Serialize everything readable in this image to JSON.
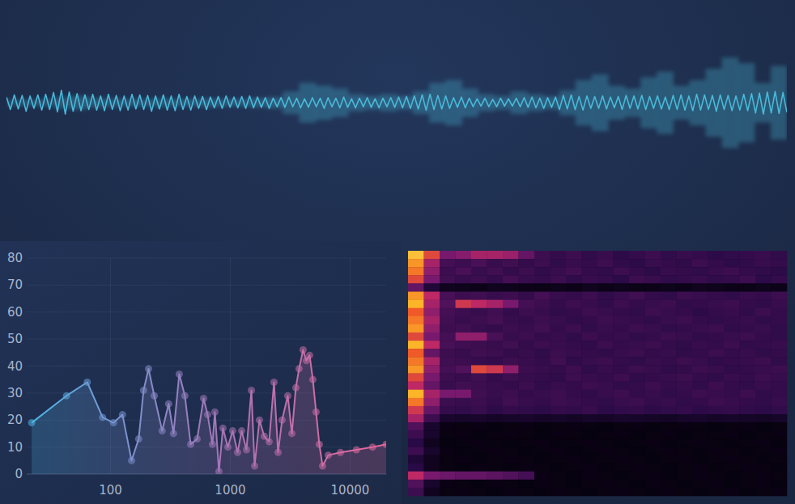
{
  "chart_data": [
    {
      "type": "line",
      "tick_labels": false,
      "ylim": [
        -1,
        1
      ],
      "series": [
        {
          "color": "#4ab8d8",
          "values": [
            0.1,
            -0.12,
            0.14,
            -0.11,
            0.13,
            -0.15,
            0.12,
            -0.1,
            0.14,
            -0.13,
            0.15,
            -0.12,
            0.18,
            -0.16,
            0.22,
            -0.2,
            0.19,
            -0.15,
            0.16,
            -0.14,
            0.14,
            -0.12,
            0.15,
            -0.13,
            0.12,
            -0.14,
            0.15,
            -0.12,
            0.13,
            -0.14,
            0.12,
            -0.13,
            0.15,
            -0.11,
            0.14,
            -0.12,
            0.13,
            -0.15,
            0.12,
            -0.11,
            0.14,
            -0.13,
            0.12,
            -0.14,
            0.15,
            -0.12,
            0.11,
            -0.13,
            0.12,
            -0.1,
            0.11,
            -0.12,
            0.1,
            -0.09,
            0.11,
            -0.1,
            0.12,
            -0.08,
            0.1,
            -0.09,
            0.11,
            -0.1,
            0.12,
            -0.09,
            0.1,
            -0.08,
            0.09,
            -0.1,
            0.08,
            -0.07,
            0.09,
            -0.08,
            0.1,
            -0.07,
            0.08,
            -0.09,
            0.07,
            -0.08,
            0.09,
            -0.07,
            0.08,
            -0.1,
            0.09,
            -0.07,
            0.08,
            -0.09,
            0.1,
            -0.08,
            0.07,
            -0.09,
            0.08,
            -0.07,
            0.09,
            -0.08,
            0.07,
            -0.09,
            0.08,
            -0.07,
            0.09,
            -0.08,
            0.1,
            -0.09,
            0.11,
            -0.1,
            0.12,
            -0.11,
            0.14,
            -0.13,
            0.15,
            -0.12,
            0.13,
            -0.11,
            0.12,
            -0.1,
            0.09,
            -0.08,
            0.1,
            -0.09,
            0.08,
            -0.07,
            0.07,
            -0.06,
            0.08,
            -0.07,
            0.06,
            -0.07,
            0.08,
            -0.06,
            0.07,
            -0.06,
            0.08,
            -0.07,
            0.09,
            -0.08,
            0.1,
            -0.09,
            0.08,
            -0.1,
            0.09,
            -0.08,
            0.1,
            -0.12,
            0.13,
            -0.11,
            0.14,
            -0.12,
            0.11,
            -0.13,
            0.12,
            -0.1,
            0.11,
            -0.1,
            0.12,
            -0.11,
            0.1,
            -0.09,
            0.11,
            -0.12,
            0.13,
            -0.1,
            0.12,
            -0.11,
            0.13,
            -0.12,
            0.11,
            -0.1,
            0.12,
            -0.11,
            0.1,
            -0.12,
            0.13,
            -0.12,
            0.14,
            -0.13,
            0.12,
            -0.14,
            0.15,
            -0.13,
            0.14,
            -0.12,
            0.13,
            -0.15,
            0.14,
            -0.12,
            0.13,
            -0.14,
            0.12,
            -0.13,
            0.15,
            -0.14,
            0.16,
            -0.18,
            0.17,
            -0.2,
            0.19,
            -0.18,
            0.2,
            -0.19,
            0.18,
            -0.17
          ]
        },
        {
          "type": "bar",
          "color": "#4ab8d8",
          "values": [
            0.05,
            0.05,
            0.06,
            0.1,
            0.12,
            0.08,
            0.07,
            0.06,
            0.06,
            0.07,
            0.06,
            0.06,
            0.07,
            0.06,
            0.06,
            0.08,
            0.1,
            0.2,
            0.35,
            0.3,
            0.25,
            0.15,
            0.12,
            0.15,
            0.12,
            0.2,
            0.35,
            0.4,
            0.25,
            0.15,
            0.12,
            0.2,
            0.15,
            0.12,
            0.22,
            0.4,
            0.5,
            0.3,
            0.25,
            0.45,
            0.55,
            0.3,
            0.4,
            0.6,
            0.8,
            0.7,
            0.35,
            0.65
          ]
        }
      ]
    },
    {
      "type": "line",
      "log": "x",
      "grid": true,
      "xlim": [
        20,
        20000
      ],
      "ylim": [
        0,
        80
      ],
      "xticks": [
        100,
        1000,
        10000
      ],
      "yticks": [
        0,
        10,
        20,
        30,
        40,
        50,
        60,
        70,
        80
      ],
      "x": [
        22,
        43,
        64,
        86,
        106,
        126,
        150,
        172,
        189,
        208,
        232,
        270,
        306,
        336,
        375,
        418,
        467,
        529,
        599,
        647,
        710,
        744,
        804,
        868,
        954,
        1048,
        1151,
        1244,
        1365,
        1500,
        1596,
        1751,
        1922,
        2110,
        2317,
        2505,
        2706,
        3019,
        3265,
        3527,
        3751,
        4054,
        4314,
        4591,
        4887,
        5200,
        5535,
        5890,
        6571,
        8300,
        11300,
        15400,
        20000
      ],
      "series": [
        {
          "color": "#e8679a",
          "marker": "circle",
          "values": [
            19,
            29,
            34,
            21,
            19,
            22,
            5,
            13,
            31,
            39,
            29,
            16,
            26,
            15,
            37,
            29,
            11,
            13,
            28,
            22,
            11,
            23,
            1,
            17,
            10,
            16,
            8,
            16,
            9,
            31,
            3,
            20,
            14,
            12,
            34,
            8,
            20,
            29,
            15,
            32,
            39,
            46,
            42,
            44,
            35,
            23,
            11,
            3,
            7,
            8,
            9,
            10,
            11
          ]
        }
      ]
    },
    {
      "type": "heatmap",
      "tick_labels": false,
      "zlim": [
        0,
        100
      ],
      "cells": [
        [
          92,
          70,
          45,
          48,
          55,
          55,
          52,
          40,
          30,
          28,
          30,
          27,
          29,
          26,
          28,
          30,
          27,
          29,
          28,
          26,
          27,
          28,
          29,
          27
        ],
        [
          85,
          55,
          32,
          30,
          33,
          29,
          31,
          28,
          30,
          27,
          29,
          28,
          30,
          27,
          26,
          29,
          28,
          27,
          30,
          28,
          26,
          27,
          29,
          28
        ],
        [
          80,
          50,
          30,
          33,
          29,
          31,
          28,
          30,
          27,
          29,
          31,
          28,
          27,
          30,
          28,
          26,
          29,
          28,
          27,
          29,
          30,
          28,
          27,
          26
        ],
        [
          70,
          45,
          31,
          29,
          30,
          28,
          32,
          29,
          28,
          30,
          27,
          29,
          28,
          26,
          30,
          29,
          27,
          28,
          29,
          27,
          28,
          30,
          26,
          28
        ],
        [
          40,
          20,
          10,
          9,
          8,
          10,
          9,
          8,
          7,
          9,
          8,
          10,
          8,
          9,
          7,
          8,
          9,
          8,
          10,
          9,
          8,
          7,
          9,
          8
        ],
        [
          85,
          60,
          33,
          30,
          31,
          29,
          30,
          28,
          32,
          29,
          28,
          30,
          27,
          29,
          31,
          28,
          27,
          30,
          29,
          28,
          27,
          29,
          28,
          30
        ],
        [
          90,
          55,
          35,
          65,
          60,
          55,
          45,
          32,
          30,
          28,
          30,
          29,
          27,
          30,
          28,
          29,
          30,
          27,
          28,
          29,
          30,
          28,
          27,
          29
        ],
        [
          75,
          50,
          32,
          30,
          29,
          31,
          28,
          30,
          29,
          27,
          28,
          30,
          29,
          28,
          27,
          30,
          29,
          28,
          26,
          28,
          29,
          27,
          30,
          28
        ],
        [
          80,
          55,
          31,
          29,
          30,
          32,
          29,
          28,
          30,
          29,
          27,
          28,
          30,
          29,
          28,
          27,
          29,
          30,
          28,
          27,
          28,
          29,
          27,
          28
        ],
        [
          85,
          50,
          30,
          31,
          29,
          28,
          30,
          29,
          31,
          28,
          30,
          27,
          29,
          28,
          30,
          29,
          27,
          28,
          29,
          30,
          27,
          28,
          29,
          27
        ],
        [
          70,
          45,
          32,
          50,
          50,
          33,
          29,
          30,
          28,
          29,
          27,
          30,
          28,
          29,
          27,
          28,
          30,
          29,
          27,
          28,
          29,
          30,
          28,
          27
        ],
        [
          90,
          60,
          33,
          31,
          30,
          29,
          31,
          28,
          30,
          29,
          28,
          27,
          30,
          28,
          29,
          30,
          28,
          27,
          29,
          28,
          30,
          27,
          28,
          29
        ],
        [
          75,
          40,
          30,
          29,
          31,
          30,
          28,
          29,
          27,
          30,
          29,
          28,
          27,
          29,
          30,
          28,
          29,
          27,
          28,
          30,
          28,
          29,
          27,
          28
        ],
        [
          80,
          55,
          31,
          30,
          29,
          28,
          30,
          29,
          28,
          31,
          27,
          29,
          30,
          28,
          27,
          29,
          28,
          30,
          29,
          27,
          28,
          29,
          30,
          27
        ],
        [
          85,
          50,
          32,
          35,
          70,
          65,
          50,
          30,
          29,
          28,
          30,
          27,
          29,
          28,
          30,
          29,
          27,
          28,
          30,
          29,
          27,
          28,
          29,
          30
        ],
        [
          70,
          45,
          30,
          29,
          31,
          28,
          30,
          29,
          28,
          27,
          30,
          29,
          28,
          30,
          27,
          28,
          29,
          30,
          28,
          27,
          29,
          28,
          30,
          29
        ],
        [
          60,
          40,
          29,
          31,
          30,
          29,
          28,
          30,
          27,
          29,
          28,
          30,
          29,
          27,
          28,
          30,
          28,
          29,
          27,
          30,
          28,
          27,
          29,
          28
        ],
        [
          90,
          55,
          45,
          45,
          31,
          29,
          30,
          28,
          29,
          30,
          28,
          27,
          29,
          30,
          28,
          29,
          27,
          28,
          30,
          29,
          28,
          30,
          27,
          28
        ],
        [
          80,
          50,
          30,
          29,
          30,
          28,
          31,
          29,
          28,
          30,
          29,
          28,
          27,
          29,
          30,
          28,
          29,
          27,
          28,
          30,
          29,
          28,
          27,
          29
        ],
        [
          65,
          40,
          28,
          27,
          29,
          26,
          28,
          27,
          26,
          28,
          27,
          29,
          26,
          27,
          28,
          26,
          27,
          28,
          26,
          27,
          28,
          27,
          26,
          27
        ],
        [
          55,
          30,
          15,
          14,
          15,
          13,
          14,
          15,
          13,
          14,
          12,
          14,
          13,
          15,
          14,
          13,
          12,
          14,
          15,
          13,
          14,
          13,
          12,
          14
        ],
        [
          35,
          15,
          6,
          5,
          6,
          4,
          5,
          6,
          4,
          5,
          6,
          5,
          4,
          5,
          6,
          4,
          5,
          6,
          5,
          4,
          5,
          6,
          4,
          5
        ],
        [
          30,
          15,
          5,
          6,
          4,
          5,
          6,
          5,
          4,
          6,
          5,
          4,
          5,
          6,
          4,
          5,
          6,
          4,
          5,
          5,
          6,
          4,
          5,
          6
        ],
        [
          25,
          10,
          4,
          5,
          6,
          5,
          4,
          5,
          6,
          4,
          5,
          6,
          5,
          4,
          5,
          6,
          4,
          5,
          6,
          5,
          4,
          5,
          6,
          4
        ],
        [
          30,
          15,
          6,
          4,
          5,
          6,
          5,
          4,
          5,
          6,
          4,
          5,
          6,
          5,
          4,
          5,
          6,
          5,
          4,
          6,
          5,
          4,
          5,
          6
        ],
        [
          20,
          10,
          5,
          6,
          4,
          5,
          6,
          5,
          4,
          5,
          6,
          4,
          5,
          6,
          5,
          4,
          5,
          6,
          4,
          5,
          6,
          5,
          4,
          5
        ],
        [
          25,
          10,
          5,
          4,
          6,
          5,
          4,
          6,
          5,
          4,
          5,
          6,
          4,
          5,
          6,
          5,
          4,
          5,
          6,
          4,
          5,
          6,
          5,
          4
        ],
        [
          60,
          45,
          42,
          40,
          40,
          38,
          35,
          32,
          6,
          5,
          4,
          6,
          5,
          4,
          5,
          6,
          4,
          5,
          6,
          5,
          4,
          5,
          6,
          5
        ],
        [
          35,
          15,
          6,
          5,
          4,
          6,
          5,
          4,
          6,
          5,
          4,
          5,
          6,
          5,
          4,
          6,
          5,
          4,
          5,
          6,
          4,
          5,
          6,
          4
        ],
        [
          30,
          10,
          5,
          6,
          5,
          4,
          6,
          5,
          4,
          6,
          5,
          4,
          5,
          6,
          5,
          4,
          6,
          5,
          4,
          5,
          6,
          4,
          5,
          6
        ]
      ]
    }
  ]
}
